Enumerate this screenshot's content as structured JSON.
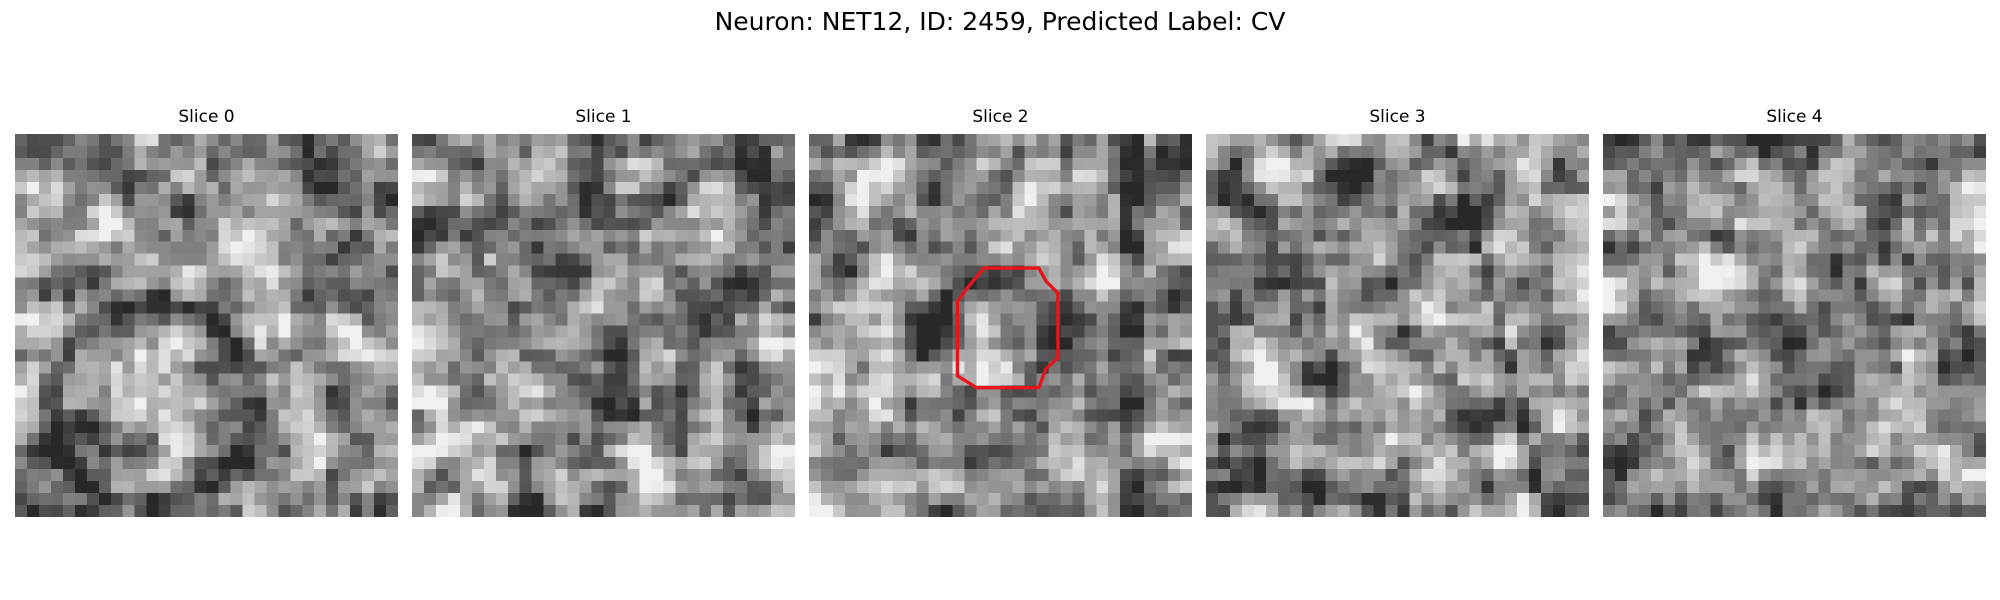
{
  "figure": {
    "title": "Neuron: NET12, ID: 2459, Predicted Label: CV"
  },
  "panels": [
    {
      "title": "Slice 0",
      "seed": 11,
      "has_outline": false,
      "overlay": "ring"
    },
    {
      "title": "Slice 1",
      "seed": 23,
      "has_outline": false,
      "overlay": "dark-blobs"
    },
    {
      "title": "Slice 2",
      "seed": 37,
      "has_outline": true,
      "overlay": "cell"
    },
    {
      "title": "Slice 3",
      "seed": 41,
      "has_outline": false,
      "overlay": "fibers"
    },
    {
      "title": "Slice 4",
      "seed": 53,
      "has_outline": false,
      "overlay": "dark-spot"
    }
  ],
  "colors": {
    "outline": "#e8141c",
    "background": "#ffffff"
  },
  "image": {
    "grid": 32,
    "colormap": "gray"
  }
}
